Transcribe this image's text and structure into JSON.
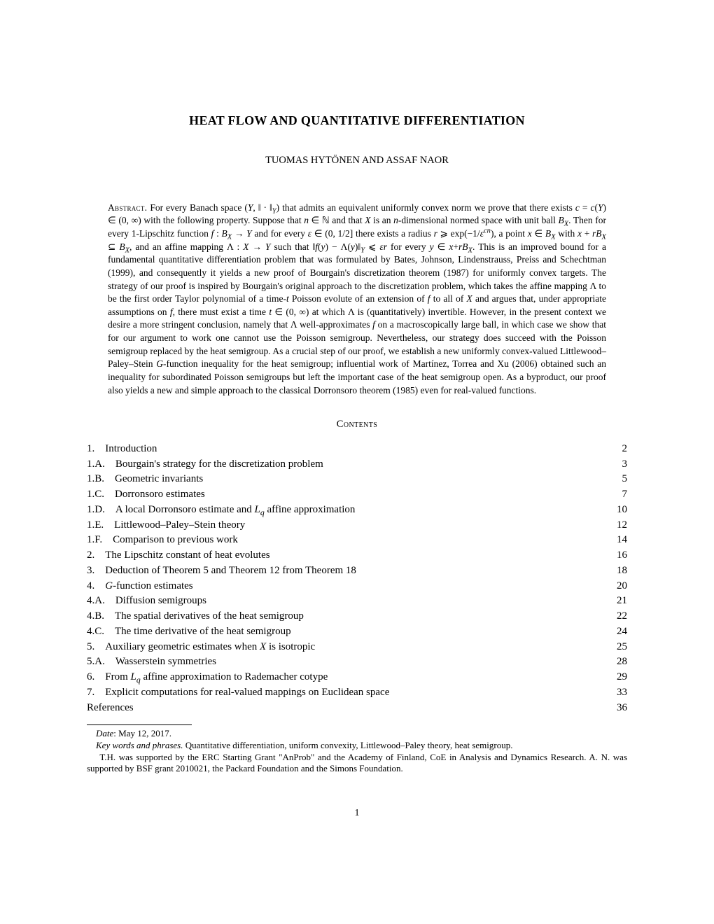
{
  "title": "HEAT FLOW AND QUANTITATIVE DIFFERENTIATION",
  "authors": "TUOMAS HYTÖNEN AND ASSAF NAOR",
  "abstract_label": "Abstract.",
  "contents_heading": "Contents",
  "toc": [
    {
      "label": "1.",
      "title": "Introduction",
      "page": "2"
    },
    {
      "label": "1.A.",
      "title": "Bourgain's strategy for the discretization problem",
      "page": "3"
    },
    {
      "label": "1.B.",
      "title": "Geometric invariants",
      "page": "5"
    },
    {
      "label": "1.C.",
      "title": "Dorronsoro estimates",
      "page": "7"
    },
    {
      "label": "1.D.",
      "title": "A local Dorronsoro estimate and Lq affine approximation",
      "page": "10"
    },
    {
      "label": "1.E.",
      "title": "Littlewood–Paley–Stein theory",
      "page": "12"
    },
    {
      "label": "1.F.",
      "title": "Comparison to previous work",
      "page": "14"
    },
    {
      "label": "2.",
      "title": "The Lipschitz constant of heat evolutes",
      "page": "16"
    },
    {
      "label": "3.",
      "title": "Deduction of Theorem 5 and Theorem 12 from Theorem 18",
      "page": "18"
    },
    {
      "label": "4.",
      "title": "G-function estimates",
      "page": "20"
    },
    {
      "label": "4.A.",
      "title": "Diffusion semigroups",
      "page": "21"
    },
    {
      "label": "4.B.",
      "title": "The spatial derivatives of the heat semigroup",
      "page": "22"
    },
    {
      "label": "4.C.",
      "title": "The time derivative of the heat semigroup",
      "page": "24"
    },
    {
      "label": "5.",
      "title": "Auxiliary geometric estimates when X is isotropic",
      "page": "25"
    },
    {
      "label": "5.A.",
      "title": "Wasserstein symmetries",
      "page": "28"
    },
    {
      "label": "6.",
      "title": "From Lq affine approximation to Rademacher cotype",
      "page": "29"
    },
    {
      "label": "7.",
      "title": "Explicit computations for real-valued mappings on Euclidean space",
      "page": "33"
    },
    {
      "label": "",
      "title": "References",
      "page": "36"
    }
  ],
  "footnote": {
    "date_label": "Date",
    "date_value": ": May 12, 2017.",
    "kw_label": "Key words and phrases.",
    "kw_value": " Quantitative differentiation, uniform convexity, Littlewood–Paley theory, heat semigroup.",
    "funding": "T.H. was supported by the ERC Starting Grant \"AnProb\" and the Academy of Finland, CoE in Analysis and Dynamics Research. A. N. was supported by BSF grant 2010021, the Packard Foundation and the Simons Foundation."
  },
  "page_number": "1"
}
